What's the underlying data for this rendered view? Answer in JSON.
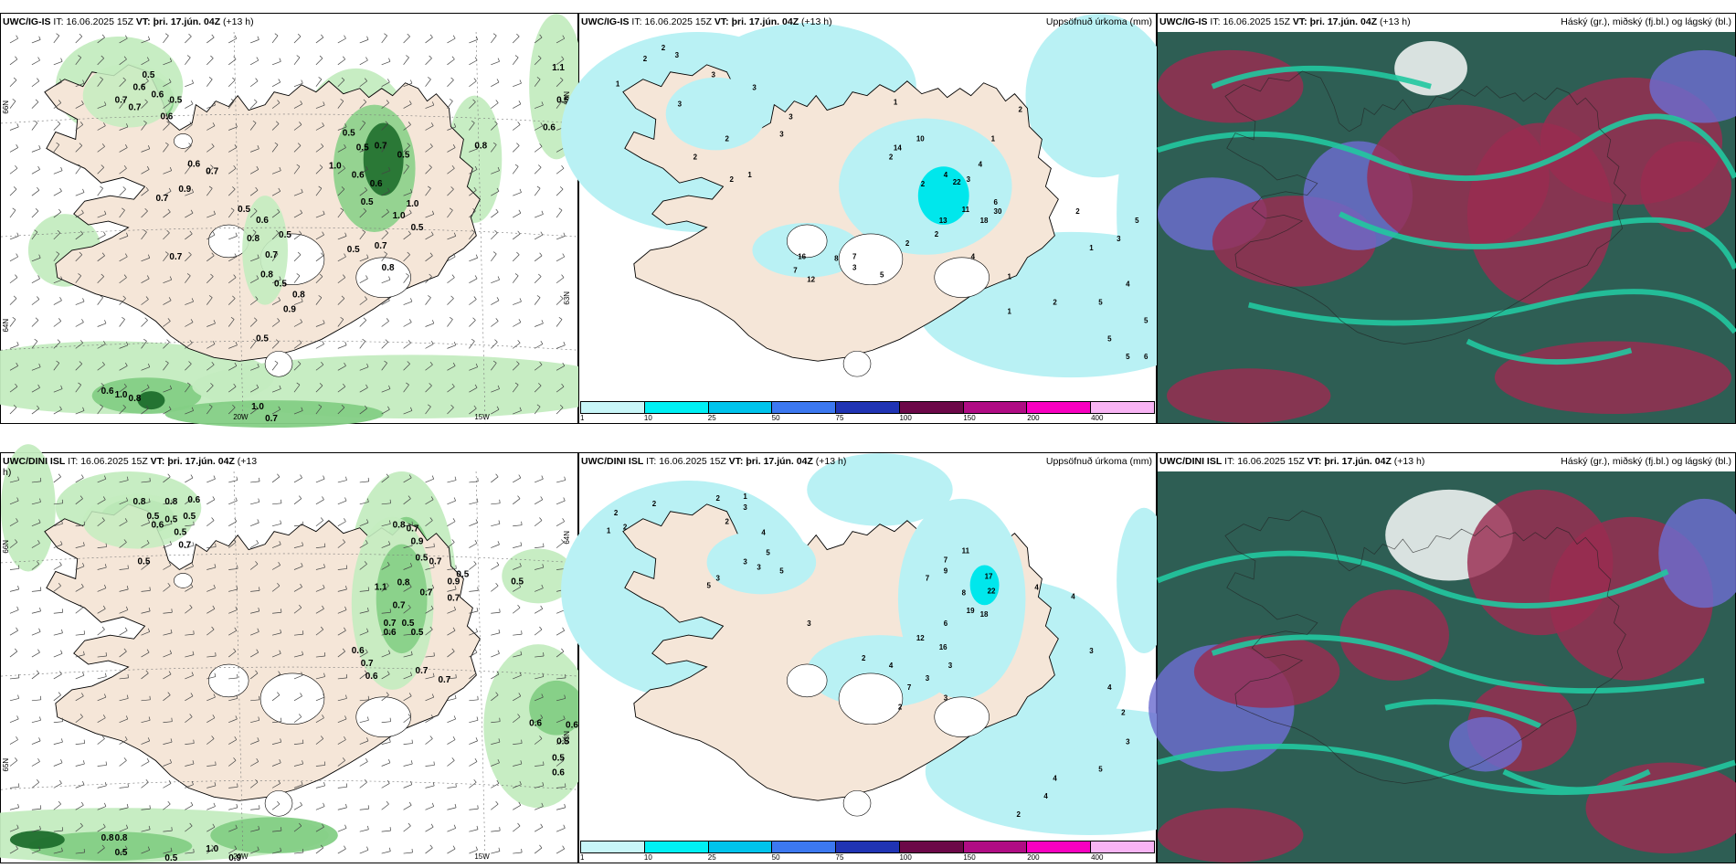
{
  "colors": {
    "land": "#f5e6d8",
    "precip_light": "#b9f1f4",
    "precip_mid": "#00e7ec",
    "wind_green_light": "#c4ecc0",
    "wind_green_mid": "#84cf85",
    "wind_green_dark": "#1e6e2c",
    "cloud_dark": "#2e5e54",
    "cloud_teal": "#22c8a0",
    "cloud_red": "#9a2c50",
    "cloud_blue": "#6c6cd0"
  },
  "rows": [
    {
      "wind": {
        "model": "UWC/IG-IS",
        "it_label": "IT:",
        "it_value": "16.06.2025 15Z",
        "vt_label": "VT:",
        "vt_value": "þri. 17.jún. 04Z",
        "lead": "(+13 h)",
        "lat_labels": [
          "66N",
          "64N",
          "65N",
          "63N"
        ],
        "lon_labels": [
          "20W",
          "15W"
        ],
        "values": [
          "0.5",
          "0.6",
          "0.6",
          "0.7",
          "0.5",
          "0.7",
          "0.6",
          "0.6",
          "0.7",
          "0.7",
          "0.9",
          "0.7",
          "0.5",
          "0.5",
          "0.7",
          "0.5",
          "1.0",
          "0.6",
          "0.6",
          "0.5",
          "1.0",
          "0.5",
          "0.5",
          "0.7",
          "0.8",
          "0.7",
          "0.5",
          "0.8",
          "0.8",
          "0.9",
          "0.5",
          "0.6",
          "0.5",
          "1.0",
          "0.8",
          "0.6",
          "1.0",
          "0.8",
          "1.0",
          "0.7",
          "0.8",
          "0.6",
          "0.5",
          "1.1",
          "0.5"
        ]
      },
      "precip": {
        "model": "UWC/IG-IS",
        "it_label": "IT:",
        "it_value": "16.06.2025 15Z",
        "vt_label": "VT:",
        "vt_value": "þri. 17.jún. 04Z",
        "lead": "(+13 h)",
        "right_title": "Uppsöfnuð úrkoma (mm)",
        "values": [
          "1",
          "2",
          "3",
          "2",
          "3",
          "3",
          "3",
          "3",
          "3",
          "2",
          "2",
          "2",
          "1",
          "1",
          "2",
          "16",
          "8",
          "7",
          "3",
          "5",
          "7",
          "12",
          "10",
          "22",
          "14",
          "4",
          "6",
          "11",
          "30",
          "18",
          "13",
          "2",
          "2",
          "4",
          "1",
          "2",
          "1",
          "1",
          "3",
          "2",
          "4",
          "5",
          "5",
          "5",
          "5",
          "5",
          "6",
          "4",
          "3",
          "2",
          "1",
          "2"
        ]
      },
      "cloud": {
        "model": "UWC/IG-IS",
        "it_label": "IT:",
        "it_value": "16.06.2025 15Z",
        "vt_label": "VT:",
        "vt_value": "þri. 17.jún. 04Z",
        "lead": "(+13 h)",
        "right_title": "Háský (gr.), miðský (fj.bl.) og lágský (bl.)"
      }
    },
    {
      "wind": {
        "model": "UWC/DINI ISL",
        "it_label": "IT:",
        "it_value": "16.06.2025 15Z",
        "vt_label": "VT:",
        "vt_value": "þri. 17.jún. 04Z",
        "lead": "(+13",
        "lead_wrap": "h)",
        "lat_labels": [
          "66N",
          "65N",
          "64N",
          "63N"
        ],
        "lon_labels": [
          "20W",
          "15W"
        ],
        "values": [
          "0.8",
          "0.8",
          "0.6",
          "0.5",
          "0.5",
          "0.5",
          "0.6",
          "0.5",
          "0.7",
          "0.5",
          "0.8",
          "0.7",
          "0.9",
          "0.5",
          "0.7",
          "0.8",
          "0.7",
          "0.9",
          "0.7",
          "0.5",
          "1.1",
          "0.7",
          "0.7",
          "0.5",
          "0.6",
          "0.5",
          "0.6",
          "0.7",
          "0.6",
          "0.7",
          "0.7",
          "1.0",
          "0.7",
          "0.5",
          "0.6",
          "0.6",
          "0.5",
          "0.5",
          "0.6",
          "0.8",
          "0.8",
          "0.5",
          "0.5",
          "1.0",
          "0.9"
        ]
      },
      "precip": {
        "model": "UWC/DINI ISL",
        "it_label": "IT:",
        "it_value": "16.06.2025 15Z",
        "vt_label": "VT:",
        "vt_value": "þri. 17.jún. 04Z",
        "lead": "(+13 h)",
        "right_title": "Uppsöfnuð úrkoma (mm)",
        "values": [
          "2",
          "2",
          "1",
          "2",
          "2",
          "1",
          "3",
          "2",
          "4",
          "5",
          "3",
          "5",
          "3",
          "3",
          "5",
          "7",
          "8",
          "7",
          "11",
          "9",
          "17",
          "22",
          "19",
          "18",
          "12",
          "16",
          "6",
          "3",
          "3",
          "7",
          "3",
          "2",
          "4",
          "2",
          "3",
          "4",
          "4",
          "3",
          "4",
          "2",
          "3",
          "5",
          "4",
          "4",
          "2"
        ]
      },
      "cloud": {
        "model": "UWC/DINI ISL",
        "it_label": "IT:",
        "it_value": "16.06.2025 15Z",
        "vt_label": "VT:",
        "vt_value": "þri. 17.jún. 04Z",
        "lead": "(+13 h)",
        "right_title": "Háský (gr.), miðský (fj.bl.) og lágský (bl.)"
      }
    }
  ],
  "colorbar": {
    "labels": [
      "1",
      "10",
      "25",
      "50",
      "75",
      "100",
      "150",
      "200",
      "400"
    ],
    "colors": [
      "#c8f6f8",
      "#00f0f4",
      "#00c4ec",
      "#3c78f0",
      "#2034b4",
      "#6c0848",
      "#b00c84",
      "#f800c0",
      "#f8b4f4"
    ]
  }
}
